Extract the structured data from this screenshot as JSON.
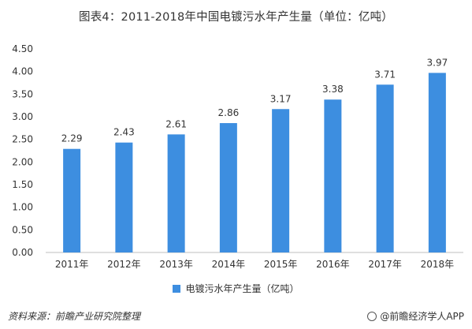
{
  "title": "图表4：2011-2018年中国电镀污水年产生量（单位：亿吨）",
  "chart_data": {
    "type": "bar",
    "categories": [
      "2011年",
      "2012年",
      "2013年",
      "2014年",
      "2015年",
      "2016年",
      "2017年",
      "2018年"
    ],
    "series": [
      {
        "name": "电镀污水年产生量（亿吨）",
        "values": [
          2.29,
          2.43,
          2.61,
          2.86,
          3.17,
          3.38,
          3.71,
          3.97
        ],
        "color": "#3d8ee0"
      }
    ],
    "data_labels": [
      "2.29",
      "2.43",
      "2.61",
      "2.86",
      "3.17",
      "3.38",
      "3.71",
      "3.97"
    ],
    "y_ticks": [
      "0.00",
      "0.50",
      "1.00",
      "1.50",
      "2.00",
      "2.50",
      "3.00",
      "3.50",
      "4.00",
      "4.50"
    ],
    "ylim": [
      0,
      4.5
    ],
    "grid": false,
    "legend_position": "bottom"
  },
  "legend": {
    "label": "电镀污水年产生量（亿吨）"
  },
  "footer": {
    "source": "资料来源：前瞻产业研究院整理",
    "brand": "@前瞻经济学人APP"
  }
}
